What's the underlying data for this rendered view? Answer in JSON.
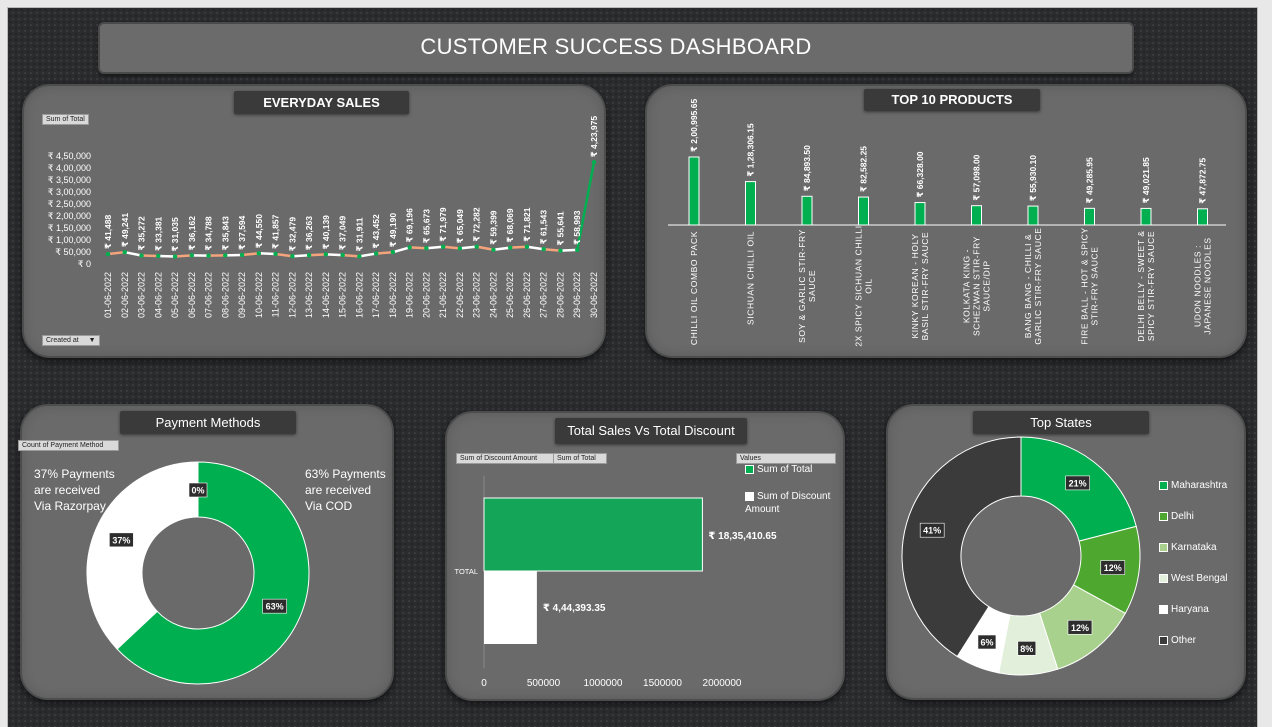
{
  "dashboard": {
    "title": "CUSTOMER SUCCESS DASHBOARD"
  },
  "colors": {
    "green": "#00b050",
    "white": "#ffffff",
    "orange": "#f4a37b",
    "dark": "#3b3b3b",
    "lightgreen": "#a9d18e",
    "midgreen": "#4ea72e",
    "palegreen": "#e2efda",
    "panel": "#6a6a6a"
  },
  "everyday_sales": {
    "title": "EVERYDAY SALES",
    "field_label": "Sum of Total",
    "filter_label": "Created at",
    "filter_icon": "dropdown-arrow-icon"
  },
  "top_products": {
    "title": "TOP 10 PRODUCTS"
  },
  "payment": {
    "title": "Payment Methods",
    "field_label": "Count of Payment Method",
    "note_left": [
      "37% Payments",
      "are received",
      "Via Razorpay"
    ],
    "note_right": [
      "63% Payments",
      "are received",
      "Via COD"
    ]
  },
  "sales_discount": {
    "title": "Total Sales Vs Total Discount",
    "field_labels": [
      "Sum of Discount Amount",
      "Sum of Total"
    ],
    "legend_title": "Values"
  },
  "top_states": {
    "title": "Top States"
  },
  "chart_data": [
    {
      "type": "line",
      "title": "EVERYDAY SALES",
      "x": [
        "01-06-2022",
        "02-06-2022",
        "03-06-2022",
        "04-06-2022",
        "05-06-2022",
        "06-06-2022",
        "07-06-2022",
        "08-06-2022",
        "09-06-2022",
        "10-06-2022",
        "11-06-2022",
        "12-06-2022",
        "13-06-2022",
        "14-06-2022",
        "15-06-2022",
        "16-06-2022",
        "17-06-2022",
        "18-06-2022",
        "19-06-2022",
        "20-06-2022",
        "21-06-2022",
        "22-06-2022",
        "23-06-2022",
        "24-06-2022",
        "25-06-2022",
        "26-06-2022",
        "27-06-2022",
        "28-06-2022",
        "29-06-2022",
        "30-06-2022"
      ],
      "values": [
        41488,
        49241,
        35272,
        33381,
        31035,
        36162,
        34788,
        35843,
        37594,
        44550,
        41857,
        32479,
        36263,
        40139,
        37049,
        31911,
        43452,
        49190,
        69196,
        65673,
        71979,
        65049,
        72282,
        59399,
        68069,
        71821,
        61543,
        55641,
        58993,
        423975
      ],
      "data_labels": [
        "₹ 41,488",
        "₹ 49,241",
        "₹ 35,272",
        "₹ 33,381",
        "₹ 31,035",
        "₹ 36,162",
        "₹ 34,788",
        "₹ 35,843",
        "₹ 37,594",
        "₹ 44,550",
        "₹ 41,857",
        "₹ 32,479",
        "₹ 36,263",
        "₹ 40,139",
        "₹ 37,049",
        "₹ 31,911",
        "₹ 43,452",
        "₹ 49,190",
        "₹ 69,196",
        "₹ 65,673",
        "₹ 71,979",
        "₹ 65,049",
        "₹ 72,282",
        "₹ 59,399",
        "₹ 68,069",
        "₹ 71,821",
        "₹ 61,543",
        "₹ 55,641",
        "₹ 58,993",
        "₹ 4,23,975"
      ],
      "y_ticks": [
        0,
        50000,
        100000,
        150000,
        200000,
        250000,
        300000,
        350000,
        400000,
        450000
      ],
      "y_tick_labels": [
        "₹ 0",
        "₹ 50,000",
        "₹ 1,00,000",
        "₹ 1,50,000",
        "₹ 2,00,000",
        "₹ 2,50,000",
        "₹ 3,00,000",
        "₹ 3,50,000",
        "₹ 4,00,000",
        "₹ 4,50,000"
      ],
      "ylim": [
        0,
        450000
      ]
    },
    {
      "type": "bar",
      "title": "TOP 10 PRODUCTS",
      "categories": [
        [
          "CHILLI OIL COMBO PACK"
        ],
        [
          "SICHUAN CHILLI OIL"
        ],
        [
          "SOY & GARLIC STIR-FRY",
          "SAUCE"
        ],
        [
          "2X SPICY SICHUAN CHILLI",
          "OIL"
        ],
        [
          "KINKY KOREAN - HOLY",
          "BASIL STIR-FRY SAUCE"
        ],
        [
          "KOLKATA KING -",
          "SCHEZWAN STIR-FRY",
          "SAUCE/DIP"
        ],
        [
          "BANG BANG - CHILLI &",
          "GARLIC STIR-FRY SAUCE"
        ],
        [
          "FIRE BALL - HOT & SPICY",
          "STIR-FRY SAUCE"
        ],
        [
          "DELHI BELLY - SWEET &",
          "SPICY STIR-FRY SAUCE"
        ],
        [
          "UDON NOODLES :",
          "JAPANESE NOODLES"
        ]
      ],
      "values": [
        200995.65,
        128306.15,
        84893.5,
        82582.25,
        66328.0,
        57098.0,
        55930.1,
        49285.95,
        49021.85,
        47872.75
      ],
      "data_labels": [
        "₹ 2,00,995.65",
        "₹ 1,28,306.15",
        "₹ 84,893.50",
        "₹ 82,582.25",
        "₹ 66,328.00",
        "₹ 57,098.00",
        "₹ 55,930.10",
        "₹ 49,285.95",
        "₹ 49,021.85",
        "₹ 47,872.75"
      ]
    },
    {
      "type": "pie",
      "title": "Payment Methods",
      "categories": [
        "COD",
        "Razorpay",
        ""
      ],
      "values": [
        63,
        37,
        0
      ],
      "data_labels": [
        "63%",
        "37%",
        "0%"
      ]
    },
    {
      "type": "bar",
      "title": "Total Sales Vs Total Discount",
      "categories": [
        "TOTAL"
      ],
      "series": [
        {
          "name": "Sum of Total",
          "values": [
            1835410.65
          ],
          "label": "₹ 18,35,410.65"
        },
        {
          "name": "Sum of Discount Amount",
          "values": [
            444393.35
          ],
          "label": "₹ 4,44,393.35"
        }
      ],
      "x_ticks": [
        0,
        500000,
        1000000,
        1500000,
        2000000
      ],
      "x_tick_labels": [
        "0",
        "500000",
        "1000000",
        "1500000",
        "2000000"
      ],
      "xlim": [
        0,
        2000000
      ]
    },
    {
      "type": "pie",
      "title": "Top States",
      "categories": [
        "Maharashtra",
        "Delhi",
        "Karnataka",
        "West Bengal",
        "Haryana",
        "Other"
      ],
      "values": [
        21,
        12,
        12,
        8,
        6,
        41
      ],
      "data_labels": [
        "21%",
        "12%",
        "12%",
        "8%",
        "6%",
        "41%"
      ],
      "legend": "right"
    }
  ]
}
